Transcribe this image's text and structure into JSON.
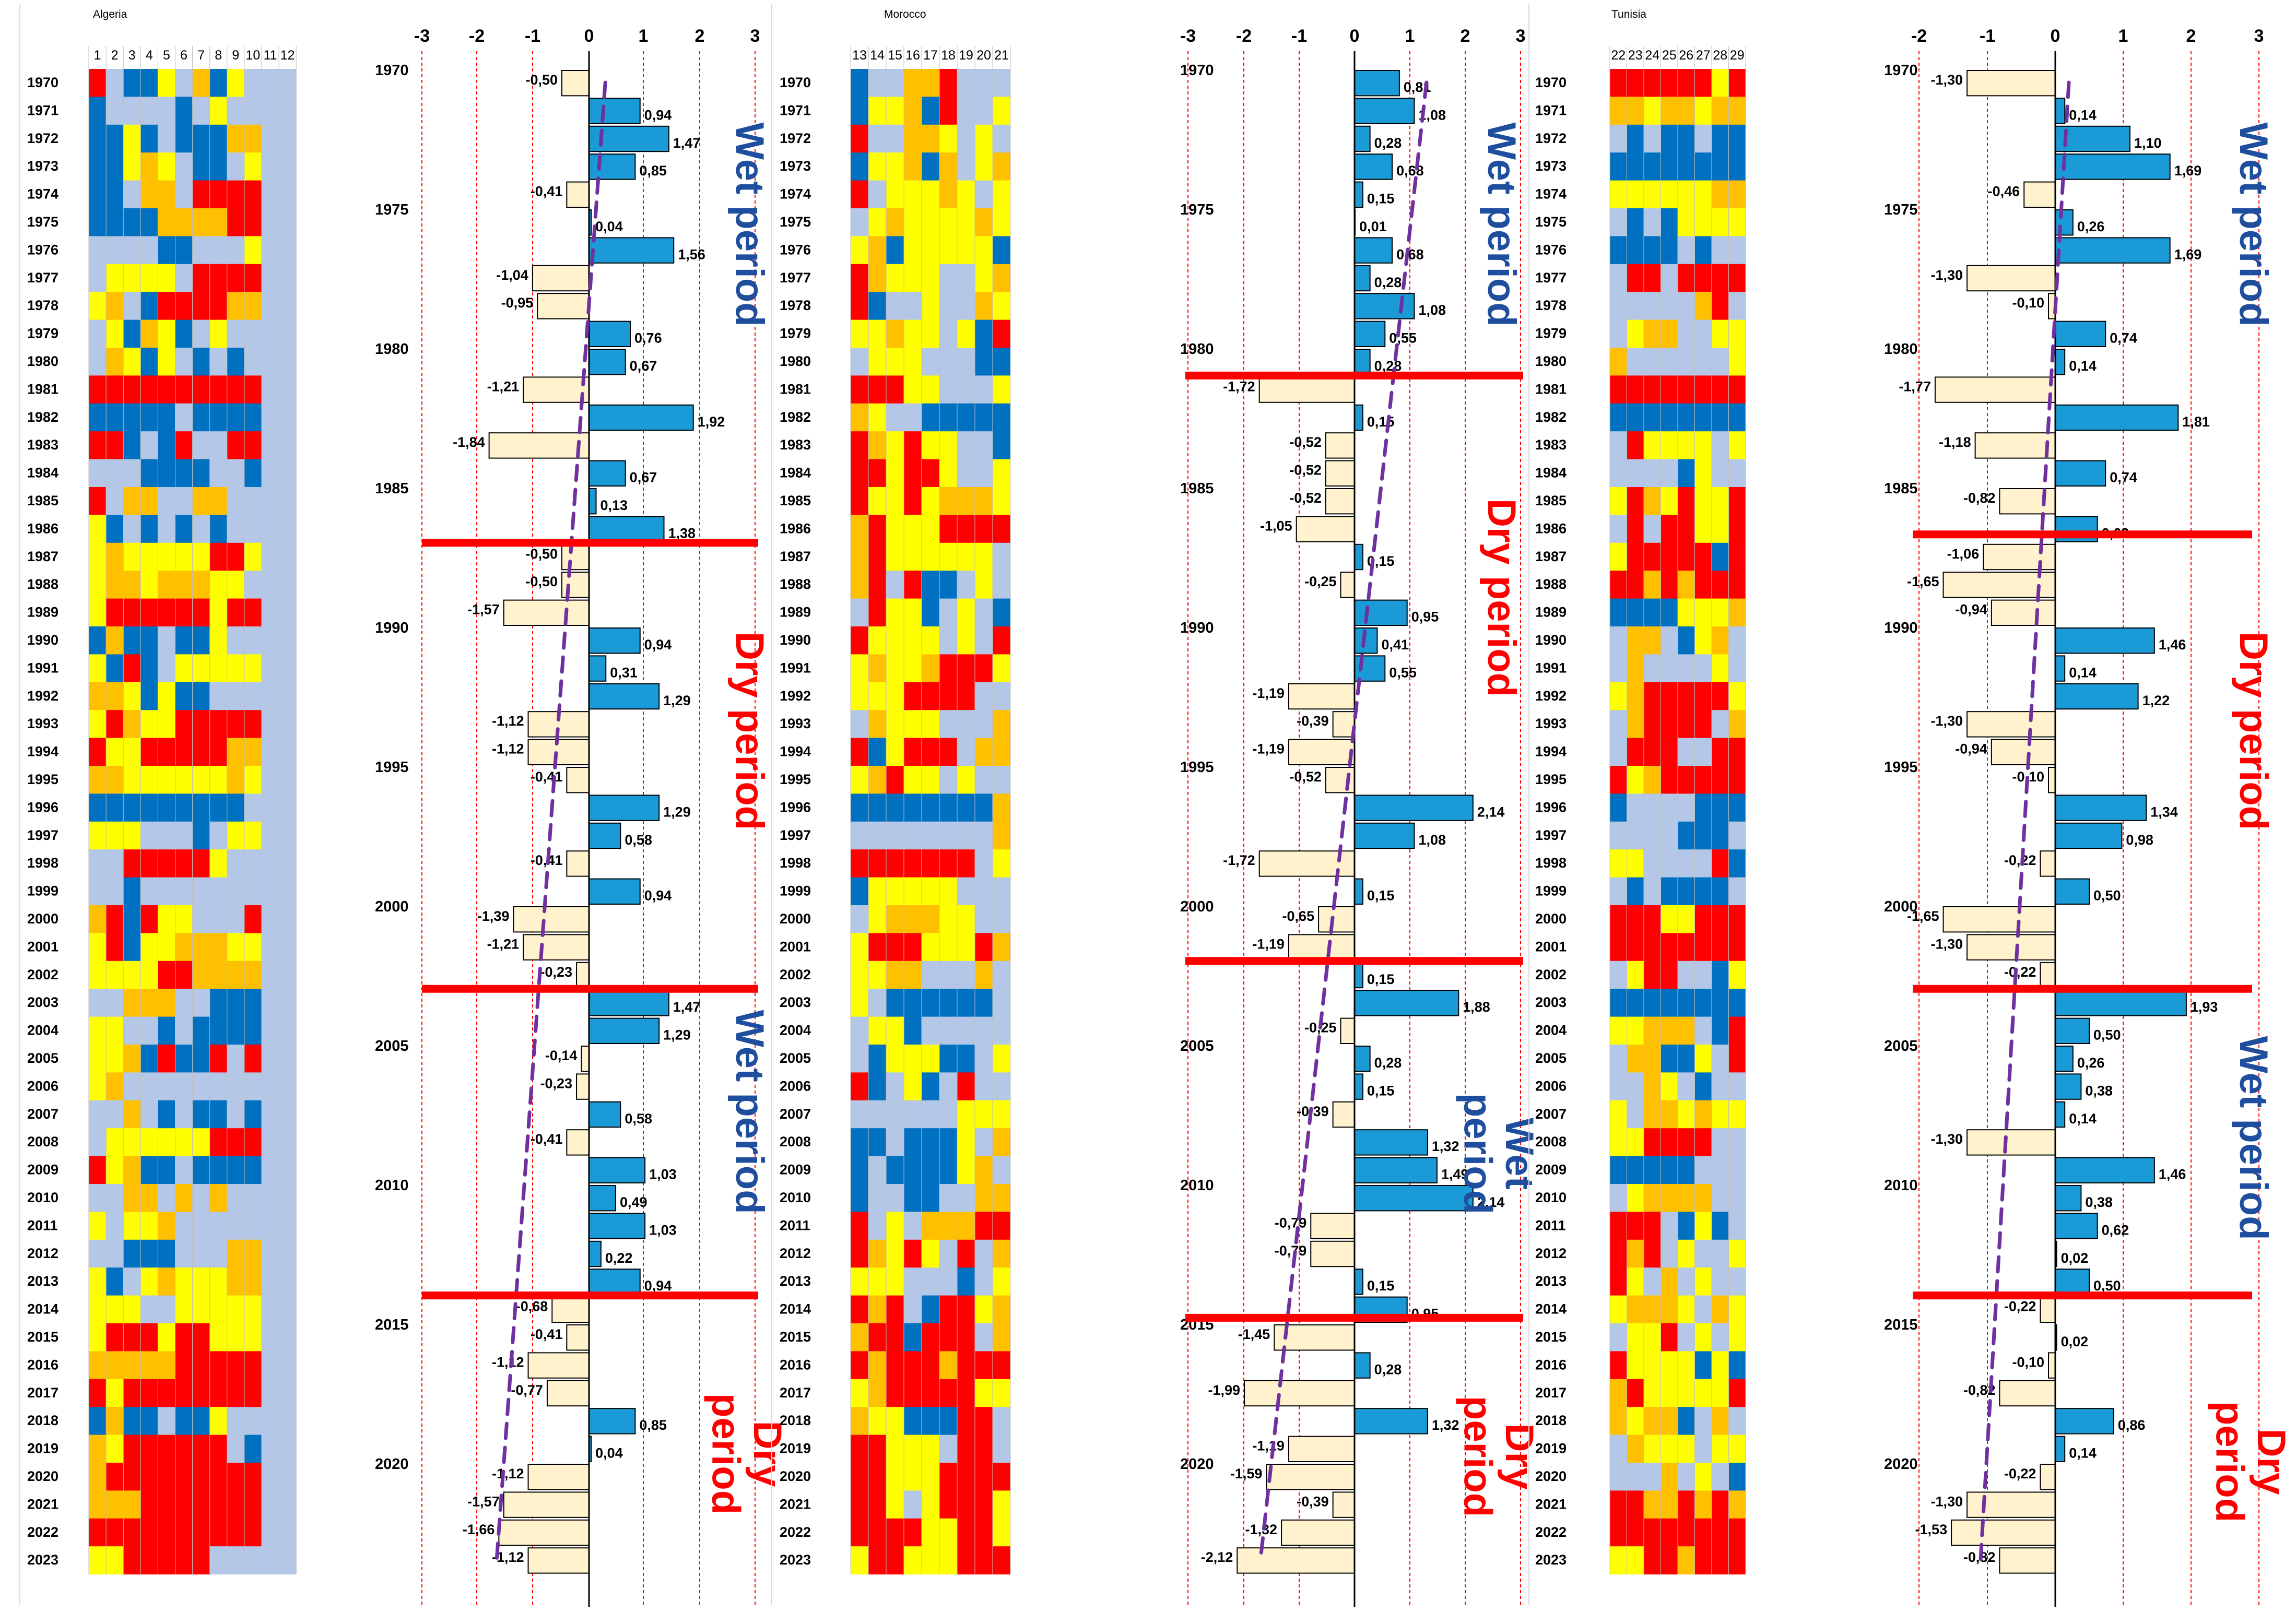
{
  "colors": {
    "wet": "#1a9ad6",
    "dry": "#fff2cc",
    "red_line": "#ff0000",
    "trend": "#7030a0",
    "wet_label": "#1f4e9e",
    "dry_label": "#ff0000",
    "grid": "#ff0000",
    "cells": {
      "1": "#0070c0",
      "2": "#b4c7e7",
      "3": "#ffff00",
      "4": "#ffc000",
      "5": "#ff0000"
    }
  },
  "years": [
    1970,
    1971,
    1972,
    1973,
    1974,
    1975,
    1976,
    1977,
    1978,
    1979,
    1980,
    1981,
    1982,
    1983,
    1984,
    1985,
    1986,
    1987,
    1988,
    1989,
    1990,
    1991,
    1992,
    1993,
    1994,
    1995,
    1996,
    1997,
    1998,
    1999,
    2000,
    2001,
    2002,
    2003,
    2004,
    2005,
    2006,
    2007,
    2008,
    2009,
    2010,
    2011,
    2012,
    2013,
    2014,
    2015,
    2016,
    2017,
    2018,
    2019,
    2020,
    2021,
    2022,
    2023
  ],
  "year_ticks": [
    "1970",
    "1975",
    "1980",
    "1985",
    "1990",
    "1995",
    "2000",
    "2005",
    "2010",
    "2015",
    "2020"
  ],
  "axis_ticks": [
    "-3",
    "-2",
    "-1",
    "0",
    "1",
    "2",
    "3"
  ],
  "chart_data": [
    {
      "type": "bar",
      "title": "Algeria",
      "orientation": "horizontal",
      "x_range": [
        -3,
        3
      ],
      "heatmap_columns": [
        "1",
        "2",
        "3",
        "4",
        "5",
        "6",
        "7",
        "8",
        "9",
        "10",
        "11",
        "12"
      ],
      "heatmap": [
        "5211324132",
        "1222212322",
        "1131211144",
        "1134321123",
        "1124425555",
        "1111444455",
        "2222112223",
        "2333325555",
        "3421555544",
        "2314312322",
        "2431321212",
        "5555555555",
        "1111121111",
        "5512152255",
        "2221111221",
        "5244224422",
        "3121212122",
        "3433333553",
        "3443444332",
        "3555555355",
        "1411211322",
        "3151233333",
        "4431311222",
        "3543355555",
        "5335555544",
        "4433333343",
        "1111111112",
        "3332221233",
        "2255555322",
        "2212222222",
        "4515332225",
        "3513344433",
        "3333554444",
        "2244422111",
        "3322121111",
        "3341511525",
        "3422222222",
        "2242121121",
        "2333333555",
        "5341121111",
        "2244242422",
        "3233422222",
        "2211122244",
        "3123433344",
        "3332233333",
        "3555355333",
        "4444455555",
        "5355555555",
        "1411211322",
        "4355555521",
        "4555555555",
        "4445555555",
        "5555555555",
        "3355555222"
      ],
      "values": [
        -0.5,
        0.94,
        1.47,
        0.85,
        -0.41,
        0.04,
        1.56,
        -1.04,
        -0.95,
        0.76,
        0.67,
        -1.21,
        1.92,
        -1.84,
        0.67,
        0.13,
        1.38,
        -0.5,
        -0.5,
        -1.57,
        0.94,
        0.31,
        1.29,
        -1.12,
        -1.12,
        -0.41,
        1.29,
        0.58,
        -0.41,
        0.94,
        -1.39,
        -1.21,
        -0.23,
        1.47,
        1.29,
        -0.14,
        -0.23,
        0.58,
        -0.41,
        1.03,
        0.49,
        1.03,
        0.22,
        0.94,
        -0.68,
        -0.41,
        -1.12,
        -0.77,
        0.85,
        0.04,
        -1.12,
        -1.57,
        -1.66,
        -1.12
      ],
      "labels": [
        "-0,50",
        "0,94",
        "1,47",
        "0,85",
        "-0,41",
        "0,04",
        "1,56",
        "-1,04",
        "-0,95",
        "0,76",
        "0,67",
        "-1,21",
        "1,92",
        "-1,84",
        "0,67",
        "0,13",
        "1,38",
        "-0,50",
        "-0,50",
        "-1,57",
        "0,94",
        "0,31",
        "1,29",
        "-1,12",
        "-1,12",
        "-0,41",
        "1,29",
        "0,58",
        "-0,41",
        "0,94",
        "-1,39",
        "-1,21",
        "-0,23",
        "1,47",
        "1,29",
        "-0,14",
        "-0,23",
        "0,58",
        "-0,41",
        "1,03",
        "0,49",
        "1,03",
        "0,22",
        "0,94",
        "-0,68",
        "-0,41",
        "-1,12",
        "-0,77",
        "0,85",
        "0,04",
        "-1,12",
        "-1,57",
        "-1,66",
        "-1,12"
      ],
      "period_breaks": [
        17,
        33,
        44
      ],
      "period_labels": [
        "Wet period",
        "Dry period",
        "Wet period",
        "Dry period"
      ],
      "trend": [
        [
          1970,
          0.3
        ],
        [
          2023,
          -1.7
        ]
      ]
    },
    {
      "type": "bar",
      "title": "Morocco",
      "orientation": "horizontal",
      "x_range": [
        -3,
        3
      ],
      "heatmap_columns": [
        "13",
        "14",
        "15",
        "16",
        "17",
        "18",
        "19",
        "20",
        "21"
      ],
      "heatmap": [
        "122445222",
        "133415223",
        "522443232",
        "133414234",
        "523334323",
        "234333343",
        "341333331",
        "543332234",
        "512232243",
        "334332315",
        "233322211",
        "555332223",
        "432211111",
        "543533221",
        "553553223",
        "533534443",
        "453335555",
        "453333332",
        "452511232",
        "253312321",
        "533332325",
        "343345553",
        "333555522",
        "243332224",
        "513555244",
        "345332322",
        "111111114",
        "222222224",
        "555555523",
        "133333222",
        "234443322",
        "355533354",
        "334422242",
        "321111112",
        "233122222",
        "213331123",
        "512312522",
        "222222333",
        "112111324",
        "121111342",
        "122112244",
        "523244455",
        "543532524",
        "333222123",
        "545215534",
        "455155524",
        "545554555",
        "345555533",
        "433111552",
        "553332552",
        "553335555",
        "553235553",
        "555533553",
        "355333555"
      ],
      "values": [
        0.81,
        1.08,
        0.28,
        0.68,
        0.15,
        0.01,
        0.68,
        0.28,
        1.08,
        0.55,
        0.28,
        -1.72,
        0.15,
        -0.52,
        -0.52,
        -0.52,
        -1.05,
        0.15,
        -0.25,
        0.95,
        0.41,
        0.55,
        -1.19,
        -0.39,
        -1.19,
        -0.52,
        2.14,
        1.08,
        -1.72,
        0.15,
        -0.65,
        -1.19,
        0.15,
        1.88,
        -0.25,
        0.28,
        0.15,
        -0.39,
        1.32,
        1.49,
        2.14,
        -0.79,
        -0.79,
        0.15,
        0.95,
        -1.45,
        0.28,
        -1.99,
        1.32,
        -1.19,
        -1.59,
        -0.39,
        -1.32,
        -2.12
      ],
      "labels": [
        "0,81",
        "1,08",
        "0,28",
        "0,68",
        "0,15",
        "0,01",
        "0,68",
        "0,28",
        "1,08",
        "0,55",
        "0,28",
        "-1,72",
        "0,15",
        "-0,52",
        "-0,52",
        "-0,52",
        "-1,05",
        "0,15",
        "-0,25",
        "0,95",
        "0,41",
        "0,55",
        "-1,19",
        "-0,39",
        "-1,19",
        "-0,52",
        "2,14",
        "1,08",
        "-1,72",
        "0,15",
        "-0,65",
        "-1,19",
        "0,15",
        "1,88",
        "-0,25",
        "0,28",
        "0,15",
        "-0,39",
        "1,32",
        "1,49",
        "2,14",
        "-0,79",
        "-0,79",
        "0,15",
        "0,95",
        "-1,45",
        "0,28",
        "-1,99",
        "1,32",
        "-1,19",
        "-1,59",
        "-0,39",
        "-1,32",
        "-2,12"
      ],
      "period_breaks": [
        11,
        32,
        44.8
      ],
      "period_labels": [
        "Wet period",
        "Dry period",
        "Wet period",
        "Dry period"
      ],
      "trend": [
        [
          1970,
          1.3
        ],
        [
          2023,
          -1.7
        ]
      ]
    },
    {
      "type": "bar",
      "title": "Tunisia",
      "orientation": "horizontal",
      "x_range": [
        -2,
        3
      ],
      "heatmap_columns": [
        "22",
        "23",
        "24",
        "25",
        "26",
        "27",
        "28",
        "29"
      ],
      "heatmap": [
        "55555535",
        "44344344",
        "21211211",
        "11111111",
        "33333344",
        "21213333",
        "11112122",
        "25525555",
        "22222452",
        "23442233",
        "42222223",
        "55555555",
        "11111111",
        "25333323",
        "22221322",
        "35435335",
        "25255335",
        "35555515",
        "55454555",
        "11113334",
        "24421342",
        "24222232",
        "34555553",
        "24555524",
        "25552255",
        "53455555",
        "12222111",
        "22221112",
        "33222251",
        "21211112",
        "55533555",
        "55555555",
        "23552213",
        "11111111",
        "33444215",
        "24411325",
        "22432122",
        "32443433",
        "33555522",
        "11111222",
        "23444422",
        "55521312",
        "54523223",
        "53242322",
        "34443243",
        "23352323",
        "53333131",
        "45333335",
        "43441242",
        "24333233",
        "22242321",
        "55445454",
        "55555555",
        "33554555"
      ],
      "values": [
        -1.3,
        0.14,
        1.1,
        1.69,
        -0.46,
        0.26,
        1.69,
        -1.3,
        -0.1,
        0.74,
        0.14,
        -1.77,
        1.81,
        -1.18,
        0.74,
        -0.82,
        0.62,
        -1.06,
        -1.65,
        -0.94,
        1.46,
        0.14,
        1.22,
        -1.3,
        -0.94,
        -0.1,
        1.34,
        0.98,
        -0.22,
        0.5,
        -1.65,
        -1.3,
        -0.22,
        1.93,
        0.5,
        0.26,
        0.38,
        0.14,
        -1.3,
        1.46,
        0.38,
        0.62,
        0.02,
        0.5,
        -0.22,
        0.02,
        -0.1,
        -0.82,
        0.86,
        0.14,
        -0.22,
        -1.3,
        -1.53,
        -0.82
      ],
      "labels": [
        "-1,30",
        "0,14",
        "1,10",
        "1,69",
        "-0,46",
        "0,26",
        "1,69",
        "-1,30",
        "-0,10",
        "0,74",
        "0,14",
        "-1,77",
        "1,81",
        "-1,18",
        "0,74",
        "-0,82",
        "0,62",
        "-1,06",
        "-1,65",
        "-0,94",
        "1,46",
        "0,14",
        "1,22",
        "-1,30",
        "-0,94",
        "-0,10",
        "1,34",
        "0,98",
        "-0,22",
        "0,50",
        "-1,65",
        "-1,30",
        "-0,22",
        "1,93",
        "0,50",
        "0,26",
        "0,38",
        "0,14",
        "-1,30",
        "1,46",
        "0,38",
        "0,62",
        "0,02",
        "0,50",
        "-0,22",
        "0,02",
        "-0,10",
        "-0,82",
        "0,86",
        "0,14",
        "-0,22",
        "-1,30",
        "-1,53",
        "-0,82"
      ],
      "period_breaks": [
        16.7,
        33,
        44
      ],
      "period_labels": [
        "Wet period",
        "Dry period",
        "Wet period",
        "Dry period"
      ],
      "trend": [
        [
          1970,
          0.2
        ],
        [
          2023,
          -1.1
        ]
      ]
    }
  ]
}
